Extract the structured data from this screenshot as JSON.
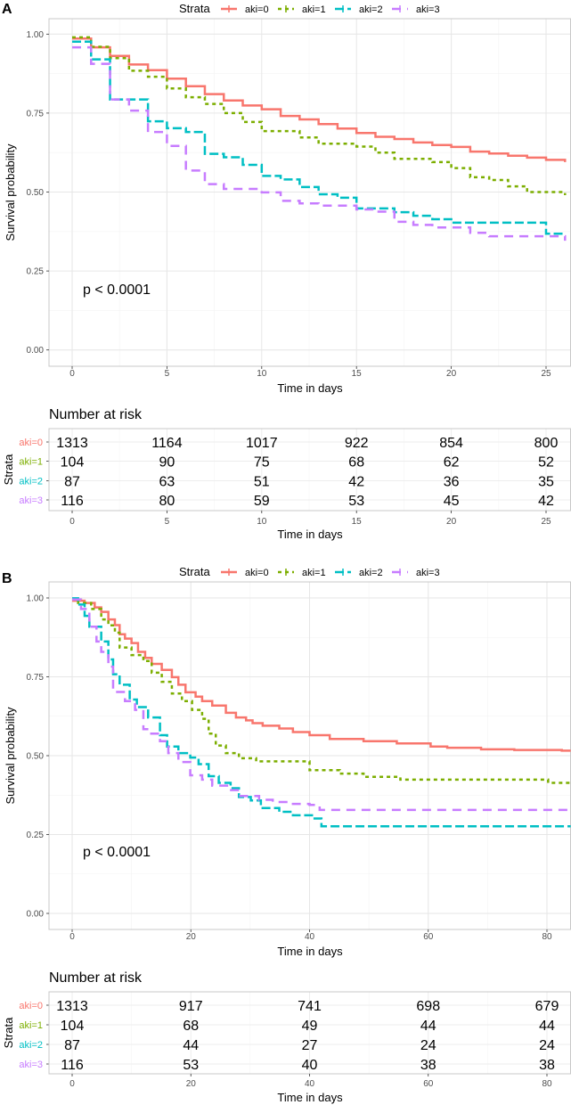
{
  "colors": {
    "aki=0": "#F8766D",
    "aki=1": "#7CAE00",
    "aki=2": "#00BFC4",
    "aki=3": "#C77CFF"
  },
  "chart_data": [
    {
      "panel": "A",
      "type": "line",
      "subtype": "kaplan-meier-step",
      "legend_title": "Strata",
      "legend_position": "top",
      "xlabel": "Time in days",
      "ylabel": "Survival probability",
      "xlim": [
        0,
        26
      ],
      "ylim": [
        0,
        1
      ],
      "xticks": [
        "0",
        "5",
        "10",
        "15",
        "20",
        "25"
      ],
      "xtick_values": [
        0,
        5,
        10,
        15,
        20,
        25
      ],
      "yticks": [
        "0.00",
        "0.25",
        "0.50",
        "0.75",
        "1.00"
      ],
      "ytick_values": [
        0,
        0.25,
        0.5,
        0.75,
        1.0
      ],
      "grid": true,
      "annotation": "p < 0.0001",
      "series": [
        {
          "name": "aki=0",
          "points": [
            [
              0,
              0.986
            ],
            [
              1,
              0.958
            ],
            [
              2,
              0.931
            ],
            [
              3,
              0.904
            ],
            [
              4,
              0.886
            ],
            [
              5,
              0.859
            ],
            [
              6,
              0.835
            ],
            [
              7,
              0.81
            ],
            [
              8,
              0.79
            ],
            [
              9,
              0.774
            ],
            [
              10,
              0.762
            ],
            [
              11,
              0.741
            ],
            [
              12,
              0.73
            ],
            [
              13,
              0.715
            ],
            [
              14,
              0.701
            ],
            [
              15,
              0.687
            ],
            [
              16,
              0.675
            ],
            [
              17,
              0.668
            ],
            [
              18,
              0.657
            ],
            [
              19,
              0.649
            ],
            [
              20,
              0.643
            ],
            [
              21,
              0.628
            ],
            [
              22,
              0.622
            ],
            [
              23,
              0.615
            ],
            [
              24,
              0.609
            ],
            [
              25,
              0.602
            ],
            [
              26,
              0.595
            ]
          ]
        },
        {
          "name": "aki=1",
          "points": [
            [
              0,
              0.99
            ],
            [
              1,
              0.96
            ],
            [
              2,
              0.924
            ],
            [
              3,
              0.884
            ],
            [
              4,
              0.865
            ],
            [
              5,
              0.828
            ],
            [
              6,
              0.8
            ],
            [
              7,
              0.779
            ],
            [
              8,
              0.75
            ],
            [
              9,
              0.722
            ],
            [
              10,
              0.693
            ],
            [
              12,
              0.673
            ],
            [
              13,
              0.653
            ],
            [
              15,
              0.644
            ],
            [
              16,
              0.625
            ],
            [
              17,
              0.605
            ],
            [
              19,
              0.595
            ],
            [
              20,
              0.576
            ],
            [
              21,
              0.547
            ],
            [
              22,
              0.538
            ],
            [
              23,
              0.518
            ],
            [
              24,
              0.5
            ],
            [
              26,
              0.49
            ]
          ]
        },
        {
          "name": "aki=2",
          "points": [
            [
              0,
              0.976
            ],
            [
              1,
              0.92
            ],
            [
              2,
              0.793
            ],
            [
              4,
              0.724
            ],
            [
              5,
              0.702
            ],
            [
              6,
              0.69
            ],
            [
              7,
              0.621
            ],
            [
              8,
              0.61
            ],
            [
              9,
              0.586
            ],
            [
              10,
              0.551
            ],
            [
              11,
              0.54
            ],
            [
              12,
              0.516
            ],
            [
              13,
              0.493
            ],
            [
              14,
              0.482
            ],
            [
              15,
              0.448
            ],
            [
              17,
              0.436
            ],
            [
              18,
              0.425
            ],
            [
              19,
              0.414
            ],
            [
              20,
              0.403
            ],
            [
              25,
              0.368
            ]
          ]
        },
        {
          "name": "aki=3",
          "points": [
            [
              0,
              0.958
            ],
            [
              1,
              0.906
            ],
            [
              2,
              0.793
            ],
            [
              3,
              0.758
            ],
            [
              4,
              0.69
            ],
            [
              5,
              0.646
            ],
            [
              6,
              0.568
            ],
            [
              7,
              0.525
            ],
            [
              8,
              0.51
            ],
            [
              10,
              0.499
            ],
            [
              11,
              0.472
            ],
            [
              12,
              0.464
            ],
            [
              13,
              0.457
            ],
            [
              15,
              0.445
            ],
            [
              16,
              0.438
            ],
            [
              17,
              0.406
            ],
            [
              18,
              0.396
            ],
            [
              19,
              0.388
            ],
            [
              21,
              0.371
            ],
            [
              22,
              0.36
            ],
            [
              26,
              0.346
            ]
          ]
        }
      ],
      "risk_table": {
        "title": "Number at risk",
        "ylabel": "Strata",
        "xlabel": "Time in days",
        "times": [
          0,
          5,
          10,
          15,
          20,
          25
        ],
        "xticks": [
          "0",
          "5",
          "10",
          "15",
          "20",
          "25"
        ],
        "rows": [
          {
            "name": "aki=0",
            "values": [
              "1313",
              "1164",
              "1017",
              "922",
              "854",
              "800"
            ]
          },
          {
            "name": "aki=1",
            "values": [
              "104",
              "90",
              "75",
              "68",
              "62",
              "52"
            ]
          },
          {
            "name": "aki=2",
            "values": [
              "87",
              "63",
              "51",
              "42",
              "36",
              "35"
            ]
          },
          {
            "name": "aki=3",
            "values": [
              "116",
              "80",
              "59",
              "53",
              "45",
              "42"
            ]
          }
        ]
      }
    },
    {
      "panel": "B",
      "type": "line",
      "subtype": "kaplan-meier-step",
      "legend_title": "Strata",
      "legend_position": "top",
      "xlabel": "Time in days",
      "ylabel": "Survival probability",
      "xlim": [
        0,
        84
      ],
      "ylim": [
        0,
        1
      ],
      "xticks": [
        "0",
        "20",
        "40",
        "60",
        "80"
      ],
      "xtick_values": [
        0,
        20,
        40,
        60,
        80
      ],
      "yticks": [
        "0.00",
        "0.25",
        "0.50",
        "0.75",
        "1.00"
      ],
      "ytick_values": [
        0,
        0.25,
        0.5,
        0.75,
        1.0
      ],
      "grid": true,
      "annotation": "p < 0.0001",
      "series": [
        {
          "name": "aki=0",
          "points": [
            [
              0,
              0.991
            ],
            [
              2.1,
              0.984
            ],
            [
              3.8,
              0.97
            ],
            [
              4.9,
              0.956
            ],
            [
              6.1,
              0.932
            ],
            [
              7.2,
              0.914
            ],
            [
              8,
              0.885
            ],
            [
              8.9,
              0.871
            ],
            [
              10,
              0.857
            ],
            [
              11.1,
              0.829
            ],
            [
              12.3,
              0.81
            ],
            [
              13.4,
              0.791
            ],
            [
              15.1,
              0.772
            ],
            [
              16.8,
              0.749
            ],
            [
              17.9,
              0.725
            ],
            [
              19.1,
              0.701
            ],
            [
              20.8,
              0.687
            ],
            [
              21.9,
              0.673
            ],
            [
              23.6,
              0.659
            ],
            [
              25.9,
              0.636
            ],
            [
              27.6,
              0.621
            ],
            [
              29.3,
              0.612
            ],
            [
              30.4,
              0.603
            ],
            [
              32.1,
              0.595
            ],
            [
              34.9,
              0.586
            ],
            [
              37.2,
              0.575
            ],
            [
              40,
              0.565
            ],
            [
              43.4,
              0.553
            ],
            [
              49.1,
              0.546
            ],
            [
              54.7,
              0.539
            ],
            [
              60.4,
              0.529
            ],
            [
              63.2,
              0.525
            ],
            [
              68.9,
              0.52
            ],
            [
              74.5,
              0.518
            ],
            [
              82.5,
              0.516
            ],
            [
              84,
              0.516
            ]
          ]
        },
        {
          "name": "aki=1",
          "points": [
            [
              0,
              0.995
            ],
            [
              1,
              0.984
            ],
            [
              3.2,
              0.965
            ],
            [
              4.9,
              0.932
            ],
            [
              6.1,
              0.913
            ],
            [
              7.2,
              0.89
            ],
            [
              8,
              0.843
            ],
            [
              10,
              0.819
            ],
            [
              12,
              0.8
            ],
            [
              13.4,
              0.763
            ],
            [
              15.1,
              0.734
            ],
            [
              16.8,
              0.697
            ],
            [
              18.5,
              0.673
            ],
            [
              20.2,
              0.645
            ],
            [
              21.9,
              0.617
            ],
            [
              23,
              0.57
            ],
            [
              24.2,
              0.532
            ],
            [
              25.9,
              0.508
            ],
            [
              28.1,
              0.492
            ],
            [
              31,
              0.482
            ],
            [
              40,
              0.454
            ],
            [
              45.1,
              0.443
            ],
            [
              49.1,
              0.433
            ],
            [
              55.3,
              0.424
            ],
            [
              80.2,
              0.414
            ],
            [
              84,
              0.414
            ]
          ]
        },
        {
          "name": "aki=2",
          "points": [
            [
              0,
              0.999
            ],
            [
              1,
              0.979
            ],
            [
              2.1,
              0.943
            ],
            [
              2.9,
              0.909
            ],
            [
              4.9,
              0.862
            ],
            [
              6.1,
              0.805
            ],
            [
              6.9,
              0.758
            ],
            [
              8,
              0.725
            ],
            [
              9.7,
              0.678
            ],
            [
              10.9,
              0.654
            ],
            [
              12.8,
              0.621
            ],
            [
              14.8,
              0.565
            ],
            [
              16,
              0.529
            ],
            [
              17.9,
              0.508
            ],
            [
              19.9,
              0.494
            ],
            [
              21.3,
              0.473
            ],
            [
              23,
              0.435
            ],
            [
              24.7,
              0.414
            ],
            [
              26.7,
              0.397
            ],
            [
              28.1,
              0.369
            ],
            [
              30.1,
              0.358
            ],
            [
              31.8,
              0.334
            ],
            [
              34.9,
              0.322
            ],
            [
              37.2,
              0.311
            ],
            [
              40.6,
              0.301
            ],
            [
              42,
              0.276
            ],
            [
              84,
              0.276
            ]
          ]
        },
        {
          "name": "aki=3",
          "points": [
            [
              0,
              0.995
            ],
            [
              1.5,
              0.965
            ],
            [
              2.9,
              0.909
            ],
            [
              4.1,
              0.862
            ],
            [
              4.9,
              0.829
            ],
            [
              6.1,
              0.782
            ],
            [
              6.9,
              0.702
            ],
            [
              8.9,
              0.673
            ],
            [
              10.6,
              0.645
            ],
            [
              12,
              0.584
            ],
            [
              13.1,
              0.57
            ],
            [
              14.8,
              0.546
            ],
            [
              16.2,
              0.508
            ],
            [
              17.9,
              0.48
            ],
            [
              19.9,
              0.438
            ],
            [
              21.9,
              0.424
            ],
            [
              23.6,
              0.405
            ],
            [
              26.1,
              0.391
            ],
            [
              28.1,
              0.372
            ],
            [
              31.5,
              0.36
            ],
            [
              33.8,
              0.353
            ],
            [
              37.2,
              0.347
            ],
            [
              40,
              0.344
            ],
            [
              41.7,
              0.328
            ],
            [
              84,
              0.328
            ]
          ]
        }
      ],
      "risk_table": {
        "title": "Number at risk",
        "ylabel": "Strata",
        "xlabel": "Time in days",
        "times": [
          0,
          20,
          40,
          60,
          80
        ],
        "xticks": [
          "0",
          "20",
          "40",
          "60",
          "80"
        ],
        "rows": [
          {
            "name": "aki=0",
            "values": [
              "1313",
              "917",
              "741",
              "698",
              "679"
            ]
          },
          {
            "name": "aki=1",
            "values": [
              "104",
              "68",
              "49",
              "44",
              "44"
            ]
          },
          {
            "name": "aki=2",
            "values": [
              "87",
              "44",
              "27",
              "24",
              "24"
            ]
          },
          {
            "name": "aki=3",
            "values": [
              "116",
              "53",
              "40",
              "38",
              "38"
            ]
          }
        ]
      }
    }
  ]
}
